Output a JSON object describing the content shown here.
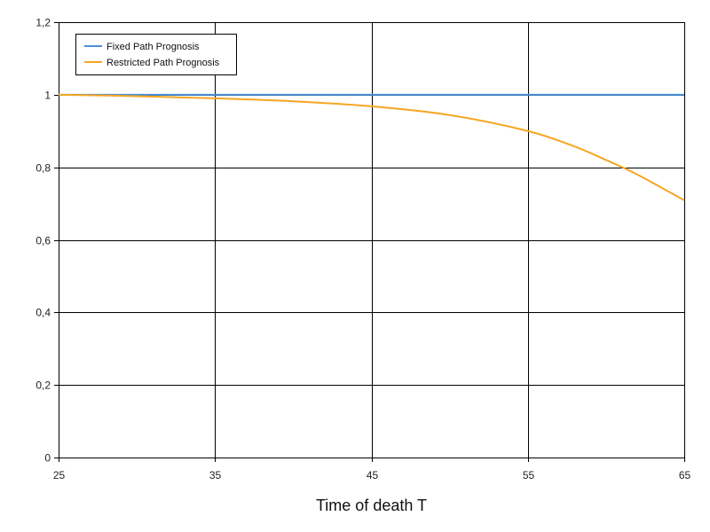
{
  "chart_data": {
    "type": "line",
    "title": "",
    "xlabel": "Time of death T",
    "ylabel": "",
    "xlim": [
      25,
      65
    ],
    "ylim": [
      0,
      1.2
    ],
    "x_ticks": [
      25,
      35,
      45,
      55,
      65
    ],
    "x_tick_labels": [
      "25",
      "35",
      "45",
      "55",
      "65"
    ],
    "y_ticks": [
      0,
      0.2,
      0.4,
      0.6,
      0.8,
      1.0,
      1.2
    ],
    "y_tick_labels": [
      "0",
      "0,2",
      "0,4",
      "0,6",
      "0,8",
      "1",
      "1,2"
    ],
    "grid": true,
    "legend_position": "top-left",
    "series": [
      {
        "name": "Fixed Path Prognosis",
        "color": "#4a90d9",
        "x": [
          25,
          30,
          35,
          40,
          45,
          50,
          55,
          60,
          65
        ],
        "y": [
          1,
          1,
          1,
          1,
          1,
          1,
          1,
          1,
          1
        ]
      },
      {
        "name": "Restricted Path Prognosis",
        "color": "#f5a623",
        "x": [
          25,
          30,
          35,
          40,
          45,
          50,
          55,
          58,
          60,
          62,
          65
        ],
        "y": [
          1.0,
          0.996,
          0.99,
          0.982,
          0.968,
          0.944,
          0.9,
          0.857,
          0.82,
          0.78,
          0.709
        ]
      }
    ]
  }
}
